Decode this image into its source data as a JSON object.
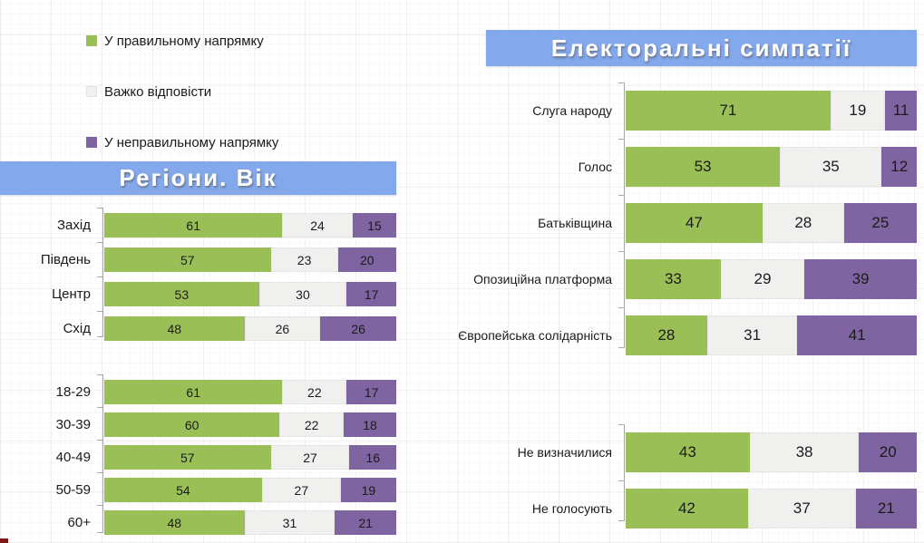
{
  "colors": {
    "positive": "#9bbf57",
    "neutral": "#f0f0ee",
    "negative": "#7e64a0",
    "banner": "#84a8ec",
    "corner": "#7c1719"
  },
  "series_keys": [
    "positive",
    "neutral",
    "negative"
  ],
  "legend": {
    "items": [
      {
        "key": "positive",
        "label": "У правильному напрямку"
      },
      {
        "key": "neutral",
        "label": "Важко відповісти"
      },
      {
        "key": "negative",
        "label": "У неправильному напрямку"
      }
    ]
  },
  "chart_data": [
    {
      "type": "bar",
      "orientation": "horizontal",
      "stacked": true,
      "title": "Регіони. Вік",
      "xlim": [
        0,
        100
      ],
      "values_are_percent": true,
      "series": [
        "У правильному напрямку",
        "Важко відповісти",
        "У неправильному напрямку"
      ],
      "legend_position": "top-left",
      "grid": false,
      "groups": [
        {
          "categories": [
            "Захід",
            "Південь",
            "Центр",
            "Схід"
          ],
          "values": [
            [
              61,
              24,
              15
            ],
            [
              57,
              23,
              20
            ],
            [
              53,
              30,
              17
            ],
            [
              48,
              26,
              26
            ]
          ]
        },
        {
          "categories": [
            "18-29",
            "30-39",
            "40-49",
            "50-59",
            "60+"
          ],
          "values": [
            [
              61,
              22,
              17
            ],
            [
              60,
              22,
              18
            ],
            [
              57,
              27,
              16
            ],
            [
              54,
              27,
              19
            ],
            [
              48,
              31,
              21
            ]
          ]
        }
      ]
    },
    {
      "type": "bar",
      "orientation": "horizontal",
      "stacked": true,
      "title": "Електоральні симпатії",
      "xlim": [
        0,
        100
      ],
      "values_are_percent": true,
      "series": [
        "У правильному напрямку",
        "Важко відповісти",
        "У неправильному напрямку"
      ],
      "grid": false,
      "groups": [
        {
          "categories": [
            "Слуга народу",
            "Голос",
            "Батьківщина",
            "Опозиційна платформа",
            "Європейська солідарність"
          ],
          "values": [
            [
              71,
              19,
              11
            ],
            [
              53,
              35,
              12
            ],
            [
              47,
              28,
              25
            ],
            [
              33,
              29,
              39
            ],
            [
              28,
              31,
              41
            ]
          ]
        },
        {
          "categories": [
            "Не визначилися",
            "Не голосують"
          ],
          "values": [
            [
              43,
              38,
              20
            ],
            [
              42,
              37,
              21
            ]
          ]
        }
      ]
    }
  ]
}
